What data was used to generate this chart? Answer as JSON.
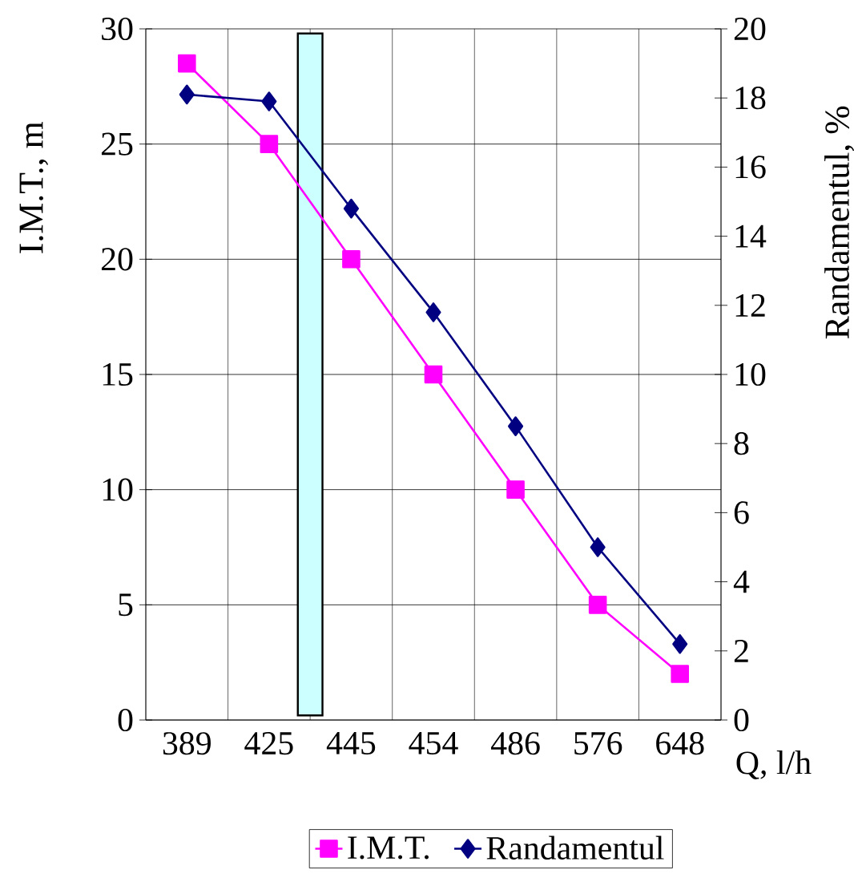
{
  "chart_data": {
    "type": "line",
    "xlabel": "Q, l/h",
    "ylabel": "I.M.T., m",
    "y2label": "Randamentul, %",
    "categories": [
      "389",
      "425",
      "445",
      "454",
      "486",
      "576",
      "648"
    ],
    "series": [
      {
        "name": "I.M.T.",
        "color": "#ff00ff",
        "marker": "square",
        "values": [
          28.5,
          25,
          20,
          15,
          10,
          5,
          2
        ]
      },
      {
        "name": "Randamentul",
        "color": "#000080",
        "marker": "diamond",
        "axis": "y2",
        "values": [
          18.1,
          17.9,
          14.8,
          11.8,
          8.5,
          5.0,
          2.2
        ]
      }
    ],
    "ylim": [
      0,
      30
    ],
    "yticks": [
      0,
      5,
      10,
      15,
      20,
      25,
      30
    ],
    "y2lim": [
      0,
      20
    ],
    "y2ticks": [
      0,
      2,
      4,
      6,
      8,
      10,
      12,
      14,
      16,
      18,
      20
    ],
    "bands": [
      {
        "axis": "x",
        "from": "425",
        "to": "445",
        "color": "#ccffff"
      }
    ],
    "grid": true,
    "legend": "bottom",
    "line_style": "solid"
  }
}
